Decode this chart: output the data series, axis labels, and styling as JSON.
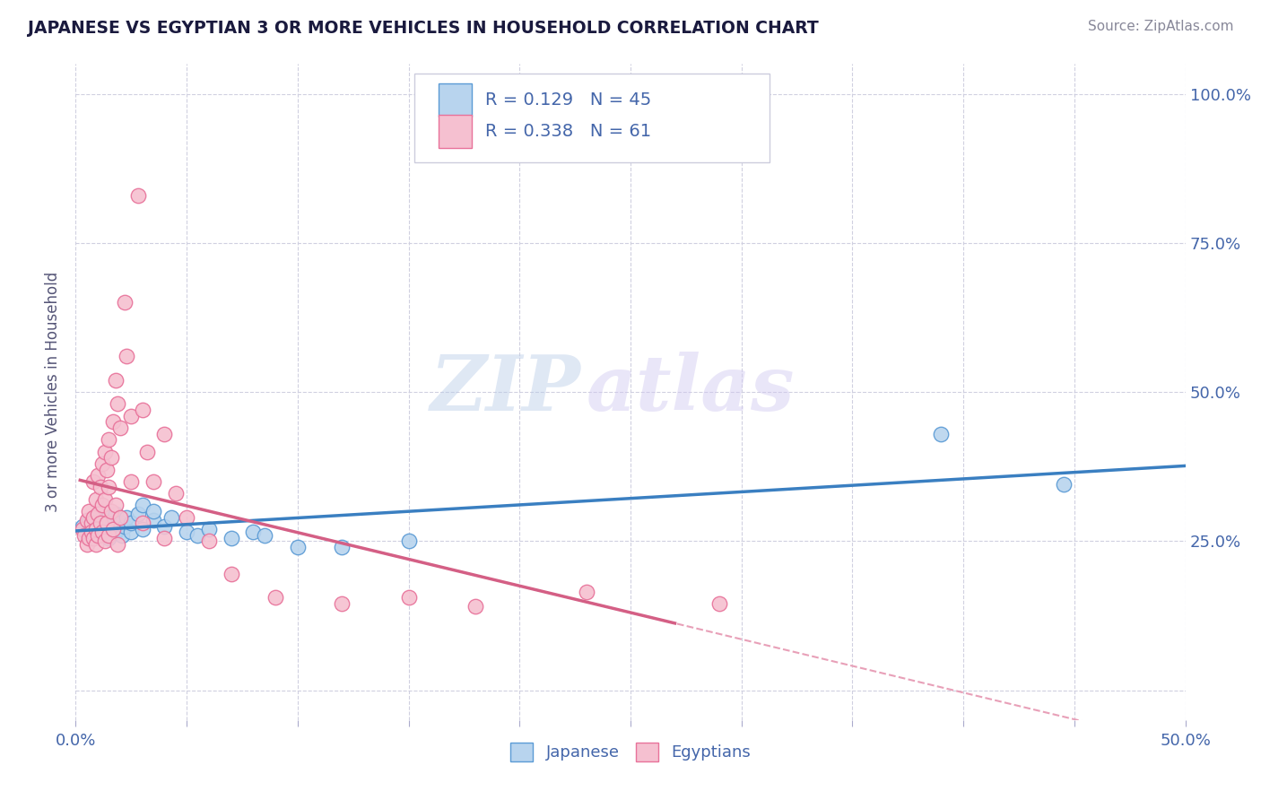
{
  "title": "JAPANESE VS EGYPTIAN 3 OR MORE VEHICLES IN HOUSEHOLD CORRELATION CHART",
  "source": "Source: ZipAtlas.com",
  "ylabel": "3 or more Vehicles in Household",
  "watermark": "ZIPatlas",
  "xlim": [
    0.0,
    0.5
  ],
  "ylim": [
    -0.05,
    1.05
  ],
  "xticks": [
    0.0,
    0.05,
    0.1,
    0.15,
    0.2,
    0.25,
    0.3,
    0.35,
    0.4,
    0.45,
    0.5
  ],
  "xtick_labels": [
    "0.0%",
    "",
    "",
    "",
    "",
    "",
    "",
    "",
    "",
    "",
    "50.0%"
  ],
  "yticks": [
    0.0,
    0.25,
    0.5,
    0.75,
    1.0
  ],
  "ytick_labels_right": [
    "",
    "25.0%",
    "50.0%",
    "75.0%",
    "100.0%"
  ],
  "japanese_color": "#b8d4ee",
  "egyptian_color": "#f5c0d0",
  "japanese_edge_color": "#5b9bd5",
  "egyptian_edge_color": "#e8729a",
  "japanese_line_color": "#3a7fc1",
  "egyptian_line_color": "#d45f85",
  "dashed_line_color": "#e8a0b8",
  "R_japanese": 0.129,
  "N_japanese": 45,
  "R_egyptian": 0.338,
  "N_egyptian": 61,
  "legend_label_japanese": "Japanese",
  "legend_label_egyptian": "Egyptians",
  "japanese_scatter": [
    [
      0.003,
      0.275
    ],
    [
      0.005,
      0.265
    ],
    [
      0.006,
      0.285
    ],
    [
      0.007,
      0.26
    ],
    [
      0.008,
      0.28
    ],
    [
      0.008,
      0.255
    ],
    [
      0.009,
      0.27
    ],
    [
      0.01,
      0.29
    ],
    [
      0.01,
      0.275
    ],
    [
      0.011,
      0.26
    ],
    [
      0.012,
      0.28
    ],
    [
      0.013,
      0.265
    ],
    [
      0.013,
      0.285
    ],
    [
      0.014,
      0.27
    ],
    [
      0.015,
      0.29
    ],
    [
      0.015,
      0.255
    ],
    [
      0.016,
      0.275
    ],
    [
      0.017,
      0.285
    ],
    [
      0.018,
      0.265
    ],
    [
      0.018,
      0.295
    ],
    [
      0.019,
      0.27
    ],
    [
      0.02,
      0.28
    ],
    [
      0.021,
      0.26
    ],
    [
      0.022,
      0.275
    ],
    [
      0.023,
      0.29
    ],
    [
      0.025,
      0.265
    ],
    [
      0.025,
      0.28
    ],
    [
      0.028,
      0.295
    ],
    [
      0.03,
      0.27
    ],
    [
      0.03,
      0.31
    ],
    [
      0.035,
      0.285
    ],
    [
      0.035,
      0.3
    ],
    [
      0.04,
      0.275
    ],
    [
      0.043,
      0.29
    ],
    [
      0.05,
      0.265
    ],
    [
      0.055,
      0.26
    ],
    [
      0.06,
      0.27
    ],
    [
      0.07,
      0.255
    ],
    [
      0.08,
      0.265
    ],
    [
      0.085,
      0.26
    ],
    [
      0.1,
      0.24
    ],
    [
      0.12,
      0.24
    ],
    [
      0.15,
      0.25
    ],
    [
      0.39,
      0.43
    ],
    [
      0.445,
      0.345
    ]
  ],
  "egyptian_scatter": [
    [
      0.003,
      0.27
    ],
    [
      0.004,
      0.26
    ],
    [
      0.005,
      0.285
    ],
    [
      0.005,
      0.245
    ],
    [
      0.006,
      0.3
    ],
    [
      0.006,
      0.255
    ],
    [
      0.007,
      0.28
    ],
    [
      0.007,
      0.265
    ],
    [
      0.008,
      0.35
    ],
    [
      0.008,
      0.29
    ],
    [
      0.008,
      0.255
    ],
    [
      0.009,
      0.32
    ],
    [
      0.009,
      0.27
    ],
    [
      0.009,
      0.245
    ],
    [
      0.01,
      0.36
    ],
    [
      0.01,
      0.295
    ],
    [
      0.01,
      0.26
    ],
    [
      0.011,
      0.34
    ],
    [
      0.011,
      0.28
    ],
    [
      0.012,
      0.38
    ],
    [
      0.012,
      0.31
    ],
    [
      0.012,
      0.265
    ],
    [
      0.013,
      0.4
    ],
    [
      0.013,
      0.32
    ],
    [
      0.013,
      0.25
    ],
    [
      0.014,
      0.37
    ],
    [
      0.014,
      0.28
    ],
    [
      0.015,
      0.42
    ],
    [
      0.015,
      0.34
    ],
    [
      0.015,
      0.26
    ],
    [
      0.016,
      0.39
    ],
    [
      0.016,
      0.3
    ],
    [
      0.017,
      0.45
    ],
    [
      0.017,
      0.27
    ],
    [
      0.018,
      0.52
    ],
    [
      0.018,
      0.31
    ],
    [
      0.019,
      0.48
    ],
    [
      0.019,
      0.245
    ],
    [
      0.02,
      0.44
    ],
    [
      0.02,
      0.29
    ],
    [
      0.022,
      0.65
    ],
    [
      0.023,
      0.56
    ],
    [
      0.025,
      0.46
    ],
    [
      0.025,
      0.35
    ],
    [
      0.028,
      0.83
    ],
    [
      0.03,
      0.47
    ],
    [
      0.03,
      0.28
    ],
    [
      0.032,
      0.4
    ],
    [
      0.035,
      0.35
    ],
    [
      0.04,
      0.43
    ],
    [
      0.04,
      0.255
    ],
    [
      0.045,
      0.33
    ],
    [
      0.05,
      0.29
    ],
    [
      0.06,
      0.25
    ],
    [
      0.07,
      0.195
    ],
    [
      0.09,
      0.155
    ],
    [
      0.12,
      0.145
    ],
    [
      0.15,
      0.155
    ],
    [
      0.18,
      0.14
    ],
    [
      0.23,
      0.165
    ],
    [
      0.29,
      0.145
    ]
  ],
  "background_color": "#ffffff",
  "grid_color": "#d0d0e0",
  "title_color": "#1a1a3e",
  "axis_label_color": "#555577",
  "tick_color": "#4466aa",
  "source_color": "#888899"
}
